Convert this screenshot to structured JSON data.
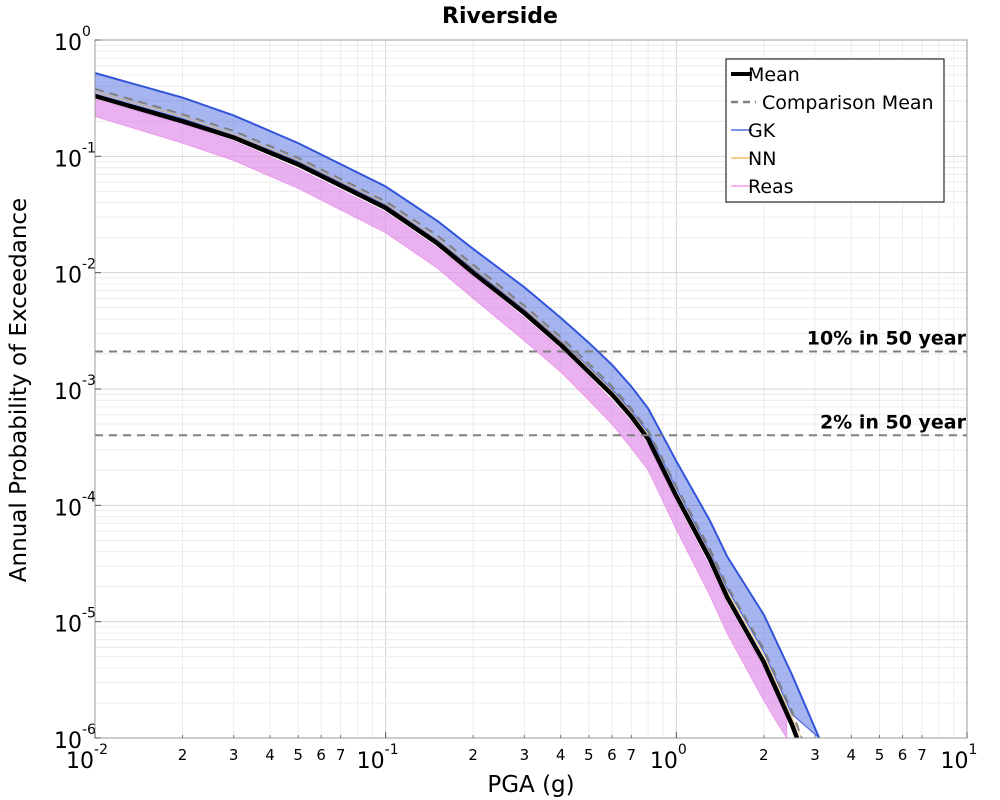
{
  "chart_data": {
    "type": "line",
    "title": "Riverside",
    "xlabel": "PGA (g)",
    "ylabel": "Annual Probability of Exceedance",
    "xscale": "log",
    "yscale": "log",
    "xlim": [
      0.01,
      10
    ],
    "ylim": [
      1e-06,
      1
    ],
    "grid": true,
    "legend_position": "top-right",
    "x_major_ticks": [
      {
        "value": 0.01,
        "base": "10",
        "exp": "-2"
      },
      {
        "value": 0.1,
        "base": "10",
        "exp": "-1"
      },
      {
        "value": 1,
        "base": "10",
        "exp": "0"
      },
      {
        "value": 10,
        "base": "10",
        "exp": "1"
      }
    ],
    "x_minor_labels": [
      "2",
      "3",
      "4",
      "5",
      "6",
      "7"
    ],
    "y_major_ticks": [
      {
        "value": 1,
        "base": "10",
        "exp": "0"
      },
      {
        "value": 0.1,
        "base": "10",
        "exp": "-1"
      },
      {
        "value": 0.01,
        "base": "10",
        "exp": "-2"
      },
      {
        "value": 0.001,
        "base": "10",
        "exp": "-3"
      },
      {
        "value": 0.0001,
        "base": "10",
        "exp": "-4"
      },
      {
        "value": 1e-05,
        "base": "10",
        "exp": "-5"
      },
      {
        "value": 1e-06,
        "base": "10",
        "exp": "-6"
      }
    ],
    "reference_lines": [
      {
        "label": "10% in 50 year",
        "y": 0.0021
      },
      {
        "label": "2% in 50 year",
        "y": 0.0004
      }
    ],
    "legend": [
      {
        "label": "Mean",
        "color": "#000000",
        "style": "solid-thick"
      },
      {
        "label": "Comparison Mean",
        "color": "#808080",
        "style": "dashed"
      },
      {
        "label": "GK",
        "color": "#2b4fd8",
        "style": "solid-thin"
      },
      {
        "label": "NN",
        "color": "#f0b040",
        "style": "solid-thin"
      },
      {
        "label": "Reas",
        "color": "#f08ce8",
        "style": "solid-thin"
      }
    ],
    "series": [
      {
        "name": "Mean",
        "color": "#000000",
        "x": [
          0.01,
          0.02,
          0.03,
          0.05,
          0.1,
          0.15,
          0.2,
          0.3,
          0.4,
          0.5,
          0.6,
          0.7,
          0.8,
          1.0,
          1.3,
          1.5,
          2.0,
          2.5,
          2.6
        ],
        "y": [
          0.33,
          0.2,
          0.145,
          0.085,
          0.036,
          0.018,
          0.01,
          0.0045,
          0.0024,
          0.0014,
          0.0009,
          0.00058,
          0.00037,
          0.00012,
          3.5e-05,
          1.6e-05,
          4.5e-06,
          1.3e-06,
          1e-06
        ]
      },
      {
        "name": "Comparison Mean",
        "color": "#808080",
        "x": [
          0.01,
          0.02,
          0.03,
          0.05,
          0.1,
          0.15,
          0.2,
          0.3,
          0.4,
          0.5,
          0.6,
          0.7,
          0.8,
          1.0,
          1.3,
          1.5,
          2.0,
          2.5,
          2.7
        ],
        "y": [
          0.38,
          0.23,
          0.165,
          0.097,
          0.041,
          0.021,
          0.0117,
          0.0052,
          0.0028,
          0.00165,
          0.00106,
          0.00068,
          0.00044,
          0.000145,
          4.3e-05,
          2e-05,
          5.8e-06,
          1.7e-06,
          1e-06
        ]
      },
      {
        "name": "GK",
        "color": "#2b4fd8",
        "band": true,
        "x": [
          0.01,
          0.02,
          0.03,
          0.05,
          0.1,
          0.15,
          0.2,
          0.3,
          0.4,
          0.5,
          0.6,
          0.7,
          0.8,
          1.0,
          1.3,
          1.5,
          2.0,
          2.5,
          3.1
        ],
        "y_low": [
          0.34,
          0.21,
          0.15,
          0.09,
          0.038,
          0.019,
          0.0108,
          0.0048,
          0.0026,
          0.00155,
          0.001,
          0.00065,
          0.00042,
          0.00014,
          4e-05,
          1.9e-05,
          5.5e-06,
          1.6e-06,
          1e-06
        ],
        "y_high": [
          0.52,
          0.32,
          0.225,
          0.13,
          0.055,
          0.028,
          0.016,
          0.0075,
          0.0041,
          0.0025,
          0.00162,
          0.00105,
          0.00068,
          0.00024,
          7.5e-05,
          3.6e-05,
          1.15e-05,
          3.5e-06,
          1e-06
        ]
      },
      {
        "name": "NN",
        "color": "#f0b040",
        "x": [
          0.01,
          0.02,
          0.03,
          0.05,
          0.1,
          0.15,
          0.2,
          0.3,
          0.4,
          0.5,
          0.6,
          0.7,
          0.8,
          1.0,
          1.3,
          1.5,
          2.0,
          2.5,
          2.7
        ],
        "y": [
          0.36,
          0.22,
          0.155,
          0.092,
          0.039,
          0.0195,
          0.011,
          0.0049,
          0.0026,
          0.00152,
          0.00097,
          0.00063,
          0.0004,
          0.00013,
          3.9e-05,
          1.8e-05,
          5.2e-06,
          1.5e-06,
          1e-06
        ]
      },
      {
        "name": "Reas",
        "color": "#f08ce8",
        "band": true,
        "x": [
          0.01,
          0.02,
          0.03,
          0.05,
          0.1,
          0.15,
          0.2,
          0.3,
          0.4,
          0.5,
          0.6,
          0.7,
          0.8,
          1.0,
          1.3,
          1.5,
          2.0,
          2.2,
          2.4
        ],
        "y_low": [
          0.22,
          0.13,
          0.092,
          0.053,
          0.022,
          0.011,
          0.006,
          0.0026,
          0.0014,
          0.0008,
          0.0005,
          0.00031,
          0.0002,
          6.2e-05,
          1.7e-05,
          7.8e-06,
          2.1e-06,
          1.4e-06,
          1e-06
        ],
        "y_high": [
          0.31,
          0.19,
          0.135,
          0.078,
          0.033,
          0.0165,
          0.0093,
          0.0041,
          0.0022,
          0.00128,
          0.0008,
          0.00052,
          0.00033,
          0.000105,
          3e-05,
          1.4e-05,
          4e-06,
          2.4e-06,
          1.5e-06
        ]
      }
    ]
  }
}
